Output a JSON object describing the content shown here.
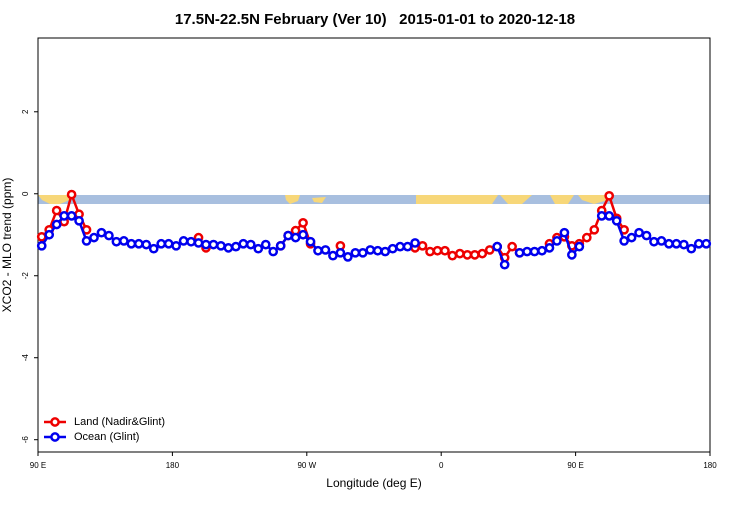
{
  "chart_data": {
    "type": "line",
    "title": "17.5N-22.5N February (Ver 10)   2015-01-01 to 2020-12-18",
    "x_label": "Longitude (deg E)",
    "y_label": "XCO2 - MLO trend (ppm)",
    "xlim": [
      90,
      540
    ],
    "ylim": [
      -6.3,
      3.8
    ],
    "xticks": [
      {
        "value": 90,
        "label": "90 E"
      },
      180,
      {
        "value": 270,
        "label": "90 W"
      },
      {
        "value": 360,
        "label": "0"
      },
      {
        "value": 450,
        "label": "90 E"
      },
      {
        "value": 540,
        "label": "180"
      }
    ],
    "yticks": [
      -6,
      -4,
      -2,
      0,
      2
    ],
    "grid": false,
    "legend": "bottom-left",
    "x": [
      92.5,
      97.5,
      102.5,
      107.5,
      112.5,
      117.5,
      122.5,
      127.5,
      132.5,
      137.5,
      142.5,
      147.5,
      152.5,
      157.5,
      162.5,
      167.5,
      172.5,
      177.5,
      182.5,
      187.5,
      192.5,
      197.5,
      202.5,
      207.5,
      212.5,
      217.5,
      222.5,
      227.5,
      232.5,
      237.5,
      242.5,
      247.5,
      252.5,
      257.5,
      262.5,
      267.5,
      272.5,
      277.5,
      282.5,
      287.5,
      292.5,
      297.5,
      302.5,
      307.5,
      312.5,
      317.5,
      322.5,
      327.5,
      332.5,
      337.5,
      342.5,
      347.5,
      352.5,
      357.5,
      362.5,
      367.5,
      372.5,
      377.5,
      382.5,
      387.5,
      392.5,
      397.5,
      402.5,
      407.5,
      412.5,
      417.5,
      422.5,
      427.5,
      432.5,
      437.5,
      442.5,
      447.5,
      452.5,
      457.5,
      462.5,
      467.5,
      472.5,
      477.5,
      482.5,
      487.5,
      492.5,
      497.5,
      502.5,
      507.5,
      512.5,
      517.5,
      522.5,
      527.5,
      532.5,
      537.5
    ],
    "series": [
      {
        "name": "Land (Nadir&Glint)",
        "color": "#ee0000",
        "values": [
          -1.05,
          -0.88,
          -0.41,
          -0.68,
          -0.02,
          -0.5,
          -0.88,
          null,
          null,
          null,
          null,
          null,
          null,
          null,
          null,
          null,
          null,
          null,
          null,
          null,
          null,
          -1.07,
          -1.32,
          null,
          null,
          null,
          null,
          null,
          null,
          null,
          null,
          null,
          -1.27,
          -1.02,
          -0.9,
          -0.71,
          -1.22,
          null,
          null,
          null,
          -1.27,
          null,
          null,
          null,
          null,
          null,
          null,
          null,
          null,
          null,
          -1.32,
          -1.27,
          -1.41,
          -1.39,
          -1.39,
          -1.51,
          -1.46,
          -1.49,
          -1.49,
          -1.46,
          -1.37,
          -1.29,
          -1.56,
          -1.29,
          -1.44,
          null,
          null,
          null,
          -1.22,
          -1.07,
          -1.05,
          -1.27,
          -1.22,
          -1.07,
          -0.88,
          -0.41,
          -0.05,
          -0.6,
          -0.88,
          null,
          null,
          null,
          null,
          null,
          null,
          null,
          null,
          null,
          null,
          null
        ]
      },
      {
        "name": "Ocean (Glint)",
        "color": "#0000ee",
        "values": [
          -1.27,
          -1.0,
          -0.75,
          -0.54,
          -0.54,
          -0.66,
          -1.15,
          -1.07,
          -0.95,
          -1.02,
          -1.17,
          -1.15,
          -1.22,
          -1.22,
          -1.24,
          -1.34,
          -1.22,
          -1.22,
          -1.27,
          -1.15,
          -1.17,
          -1.2,
          -1.24,
          -1.24,
          -1.27,
          -1.32,
          -1.29,
          -1.22,
          -1.24,
          -1.34,
          -1.24,
          -1.41,
          -1.27,
          -1.02,
          -1.07,
          -1.0,
          -1.17,
          -1.39,
          -1.37,
          -1.51,
          -1.44,
          -1.54,
          -1.44,
          -1.44,
          -1.37,
          -1.39,
          -1.41,
          -1.34,
          -1.29,
          -1.29,
          -1.2,
          null,
          null,
          null,
          null,
          null,
          null,
          null,
          null,
          null,
          null,
          -1.29,
          -1.73,
          null,
          -1.44,
          -1.41,
          -1.41,
          -1.39,
          -1.32,
          -1.15,
          -0.95,
          -1.49,
          -1.29,
          null,
          null,
          -0.54,
          -0.54,
          -0.66,
          -1.15,
          -1.07,
          -0.95,
          -1.02,
          -1.17,
          -1.15,
          -1.22,
          -1.22,
          -1.24,
          -1.34,
          -1.22,
          -1.22
        ]
      }
    ]
  }
}
